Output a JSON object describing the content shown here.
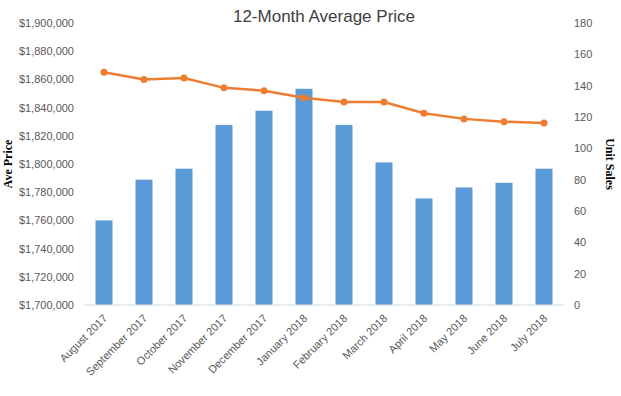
{
  "chart_data": {
    "type": "bar",
    "title": "12-Month Average Price",
    "ylabel": "Ave Price",
    "y2label": "Unit Sales",
    "categories": [
      "August 2017",
      "September 2017",
      "October 2017",
      "November 2017",
      "December 2017",
      "January 2018",
      "February 2018",
      "March 2018",
      "April 2018",
      "May 2018",
      "June 2018",
      "July 2018"
    ],
    "series": [
      {
        "type": "bar",
        "color": "#5b9bd5",
        "axis": "y2",
        "values": [
          54,
          80,
          87,
          115,
          124,
          138,
          115,
          91,
          68,
          75,
          78,
          87
        ]
      },
      {
        "type": "line",
        "color": "#ed7d31",
        "marker": "circle",
        "line_style": "solid",
        "values": [
          1865000,
          1860000,
          1861000,
          1854000,
          1852000,
          1847000,
          1844000,
          1844000,
          1836000,
          1832000,
          1830000,
          1829000
        ]
      }
    ],
    "ylim": [
      1700000,
      1900000
    ],
    "yticks": [
      {
        "value": 1700000,
        "label": "$1,700,000"
      },
      {
        "value": 1720000,
        "label": "$1,720,000"
      },
      {
        "value": 1740000,
        "label": "$1,740,000"
      },
      {
        "value": 1760000,
        "label": "$1,760,000"
      },
      {
        "value": 1780000,
        "label": "$1,780,000"
      },
      {
        "value": 1800000,
        "label": "$1,800,000"
      },
      {
        "value": 1820000,
        "label": "$1,820,000"
      },
      {
        "value": 1840000,
        "label": "$1,840,000"
      },
      {
        "value": 1860000,
        "label": "$1,860,000"
      },
      {
        "value": 1880000,
        "label": "$1,880,000"
      },
      {
        "value": 1900000,
        "label": "$1,900,000"
      }
    ],
    "y2lim": [
      0,
      180
    ],
    "y2ticks": [
      0,
      20,
      40,
      60,
      80,
      100,
      120,
      140,
      160,
      180
    ],
    "grid": false
  }
}
